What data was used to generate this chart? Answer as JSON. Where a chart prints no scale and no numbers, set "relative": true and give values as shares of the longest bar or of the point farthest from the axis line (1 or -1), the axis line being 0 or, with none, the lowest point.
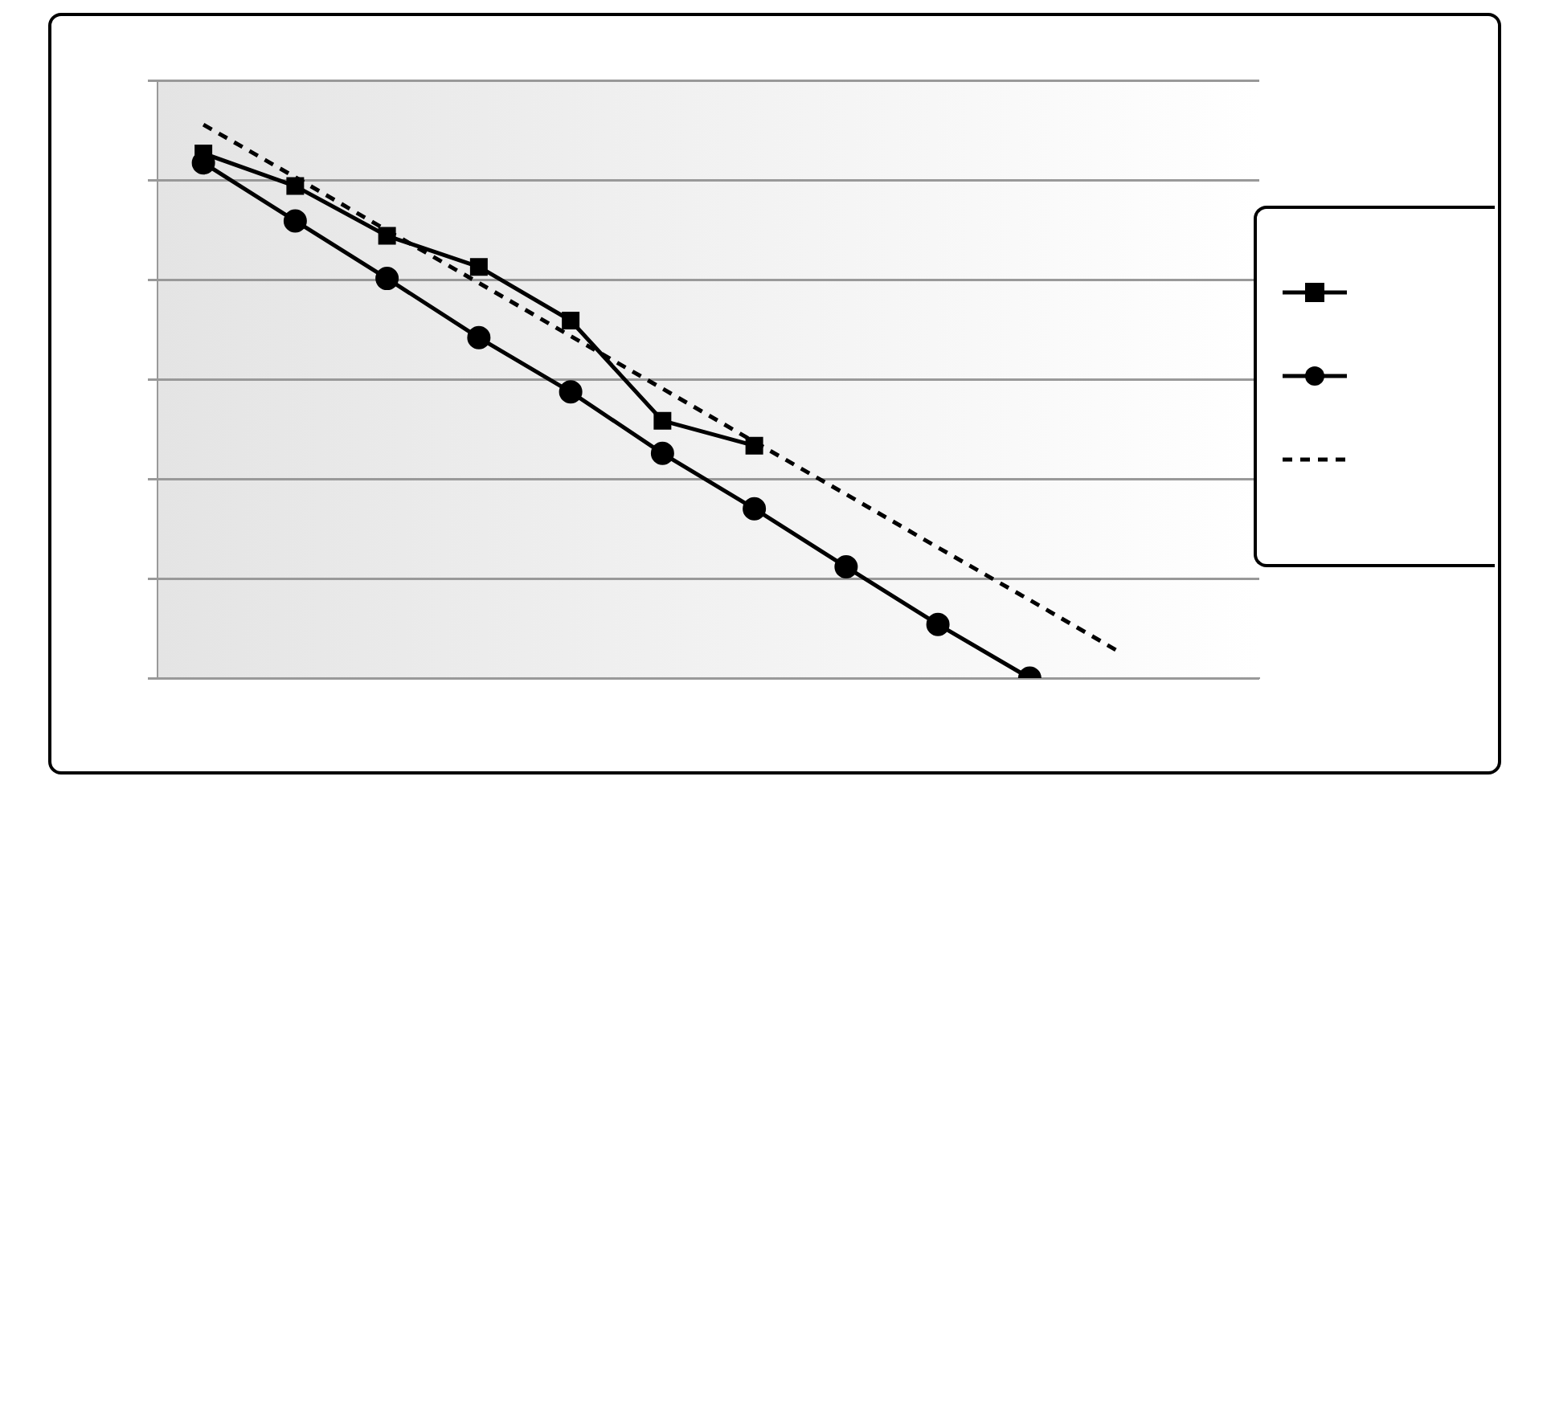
{
  "chart_data": {
    "type": "line",
    "relative": true,
    "grid": "y",
    "categories": [
      null,
      null,
      null,
      null,
      null,
      null,
      null,
      null,
      null,
      null,
      null,
      null
    ],
    "series": [
      {
        "color": "#000000",
        "marker": "square",
        "line_style": "solid",
        "values": [
          0.948,
          0.889,
          0.799,
          0.743,
          0.646,
          0.465,
          0.42,
          null,
          null,
          null,
          null,
          null
        ]
      },
      {
        "color": "#000000",
        "marker": "circle",
        "line_style": "solid",
        "values": [
          0.931,
          0.826,
          0.722,
          0.615,
          0.517,
          0.406,
          0.306,
          0.201,
          0.097,
          0,
          null,
          null
        ]
      },
      {
        "color": "#000000",
        "marker": "none",
        "line_style": "dashed",
        "values": [
          1,
          0.905,
          0.809,
          0.714,
          0.618,
          0.523,
          0.427,
          0.332,
          0.236,
          0.141,
          0.045,
          null
        ]
      }
    ]
  }
}
